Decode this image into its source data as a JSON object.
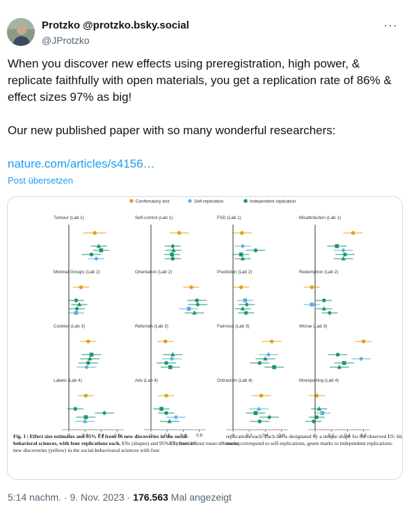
{
  "author": {
    "display_name": "Protzko @protzko.bsky.social",
    "handle": "@JProtzko"
  },
  "more_menu": "···",
  "tweet": {
    "line1": "When you discover new effects using preregistration, high power, & replicate faithfully with open materials, you get a replication rate of 86% & effect sizes 97% as big!",
    "line2": "Our new published paper with so many wonderful researchers:",
    "link_text": "nature.com/articles/s4156…",
    "translate": "Post übersetzen"
  },
  "figure": {
    "legend": [
      "Confirmatory test",
      "Self-replication",
      "Independent replication"
    ],
    "colors": {
      "confirmatory": "#e3a21a",
      "self": "#5aaee3",
      "independent": "#1a9670",
      "axis": "#333333",
      "text": "#333333"
    },
    "panels": [
      {
        "label": "Tumour (Lab 1)",
        "marks": [
          {
            "x": 0.32,
            "t": "c",
            "ci": 0.14
          },
          {
            "x": 0.37,
            "t": "i",
            "s": "tri",
            "ci": 0.1
          },
          {
            "x": 0.4,
            "t": "i",
            "s": "sq",
            "ci": 0.1
          },
          {
            "x": 0.28,
            "t": "i",
            "s": "dot",
            "ci": 0.12
          },
          {
            "x": 0.34,
            "t": "s",
            "s": "dia",
            "ci": 0.1
          }
        ]
      },
      {
        "label": "Self-control (Lab 1)",
        "marks": [
          {
            "x": 0.35,
            "t": "c",
            "ci": 0.12
          },
          {
            "x": 0.27,
            "t": "i",
            "s": "dia",
            "ci": 0.1
          },
          {
            "x": 0.28,
            "t": "i",
            "s": "tri",
            "ci": 0.1
          },
          {
            "x": 0.26,
            "t": "i",
            "s": "sq",
            "ci": 0.1
          },
          {
            "x": 0.27,
            "t": "i",
            "s": "dot",
            "ci": 0.1
          }
        ]
      },
      {
        "label": "FSD (Lab 1)",
        "marks": [
          {
            "x": 0.11,
            "t": "c",
            "ci": 0.12
          },
          {
            "x": 0.12,
            "t": "s",
            "s": "dia",
            "ci": 0.1
          },
          {
            "x": 0.28,
            "t": "i",
            "s": "dot",
            "ci": 0.12
          },
          {
            "x": 0.1,
            "t": "i",
            "s": "sq",
            "ci": 0.1
          },
          {
            "x": 0.12,
            "t": "i",
            "s": "tri",
            "ci": 0.1
          }
        ]
      },
      {
        "label": "Misattribution (Lab 1)",
        "marks": [
          {
            "x": 0.47,
            "t": "c",
            "ci": 0.12
          },
          {
            "x": 0.27,
            "t": "i",
            "s": "sq",
            "ci": 0.12
          },
          {
            "x": 0.35,
            "t": "s",
            "s": "dia",
            "ci": 0.12
          },
          {
            "x": 0.37,
            "t": "i",
            "s": "dot",
            "ci": 0.12
          },
          {
            "x": 0.35,
            "t": "i",
            "s": "tri",
            "ci": 0.12
          }
        ]
      },
      {
        "label": "Minimal Groups (Lab 2)",
        "marks": [
          {
            "x": 0.15,
            "t": "c",
            "ci": 0.1
          },
          {
            "x": 0.09,
            "t": "i",
            "s": "dot",
            "ci": 0.1
          },
          {
            "x": 0.13,
            "t": "i",
            "s": "tri",
            "ci": 0.1
          },
          {
            "x": 0.1,
            "t": "i",
            "s": "dia",
            "ci": 0.1
          },
          {
            "x": 0.09,
            "t": "s",
            "s": "sq",
            "ci": 0.1
          }
        ]
      },
      {
        "label": "Orientation (Lab 2)",
        "marks": [
          {
            "x": 0.5,
            "t": "c",
            "ci": 0.1
          },
          {
            "x": 0.57,
            "t": "i",
            "s": "dot",
            "ci": 0.12
          },
          {
            "x": 0.58,
            "t": "i",
            "s": "dia",
            "ci": 0.12
          },
          {
            "x": 0.47,
            "t": "s",
            "s": "sq",
            "ci": 0.12
          },
          {
            "x": 0.54,
            "t": "i",
            "s": "tri",
            "ci": 0.12
          }
        ]
      },
      {
        "label": "Prediction (Lab 2)",
        "marks": [
          {
            "x": 0.1,
            "t": "c",
            "ci": 0.1
          },
          {
            "x": 0.15,
            "t": "s",
            "s": "sq",
            "ci": 0.1
          },
          {
            "x": 0.17,
            "t": "i",
            "s": "dia",
            "ci": 0.1
          },
          {
            "x": 0.12,
            "t": "i",
            "s": "tri",
            "ci": 0.1
          },
          {
            "x": 0.16,
            "t": "i",
            "s": "dot",
            "ci": 0.1
          }
        ]
      },
      {
        "label": "Redemption (Lab 2)",
        "marks": [
          {
            "x": -0.04,
            "t": "c",
            "ci": 0.1
          },
          {
            "x": 0.11,
            "t": "i",
            "s": "dot",
            "ci": 0.1
          },
          {
            "x": -0.04,
            "t": "s",
            "s": "sq",
            "ci": 0.1
          },
          {
            "x": 0.11,
            "t": "i",
            "s": "tri",
            "ci": 0.1
          },
          {
            "x": 0.18,
            "t": "i",
            "s": "dia",
            "ci": 0.1
          }
        ]
      },
      {
        "label": "Cookies (Lab 3)",
        "marks": [
          {
            "x": 0.24,
            "t": "c",
            "ci": 0.1
          },
          {
            "x": 0.28,
            "t": "i",
            "s": "sq",
            "ci": 0.12
          },
          {
            "x": 0.26,
            "t": "i",
            "s": "tri",
            "ci": 0.12
          },
          {
            "x": 0.24,
            "t": "i",
            "s": "dot",
            "ci": 0.12
          },
          {
            "x": 0.22,
            "t": "s",
            "s": "dia",
            "ci": 0.12
          }
        ]
      },
      {
        "label": "Referrals (Lab 3)",
        "marks": [
          {
            "x": 0.18,
            "t": "c",
            "ci": 0.1
          },
          {
            "x": 0.27,
            "t": "i",
            "s": "tri",
            "ci": 0.12
          },
          {
            "x": 0.26,
            "t": "s",
            "s": "dia",
            "ci": 0.12
          },
          {
            "x": 0.19,
            "t": "i",
            "s": "dot",
            "ci": 0.12
          },
          {
            "x": 0.24,
            "t": "i",
            "s": "sq",
            "ci": 0.12
          }
        ]
      },
      {
        "label": "Fairness (Lab 3)",
        "marks": [
          {
            "x": 0.48,
            "t": "c",
            "ci": 0.12
          },
          {
            "x": 0.44,
            "t": "s",
            "s": "dia",
            "ci": 0.12
          },
          {
            "x": 0.4,
            "t": "i",
            "s": "tri",
            "ci": 0.12
          },
          {
            "x": 0.33,
            "t": "i",
            "s": "dot",
            "ci": 0.12
          },
          {
            "x": 0.51,
            "t": "i",
            "s": "sq",
            "ci": 0.12
          }
        ]
      },
      {
        "label": "Worse (Lab 3)",
        "marks": [
          {
            "x": 0.6,
            "t": "c",
            "ci": 0.1
          },
          {
            "x": 0.28,
            "t": "i",
            "s": "dot",
            "ci": 0.12
          },
          {
            "x": 0.57,
            "t": "s",
            "s": "dia",
            "ci": 0.12
          },
          {
            "x": 0.36,
            "t": "i",
            "s": "sq",
            "ci": 0.12
          },
          {
            "x": 0.3,
            "t": "i",
            "s": "tri",
            "ci": 0.12
          }
        ]
      },
      {
        "label": "Labels (Lab 4)",
        "marks": [
          {
            "x": 0.21,
            "t": "c",
            "ci": 0.1
          },
          {
            "x": 0.08,
            "t": "i",
            "s": "dot",
            "ci": 0.1
          },
          {
            "x": 0.44,
            "t": "i",
            "s": "dia",
            "ci": 0.12
          },
          {
            "x": 0.21,
            "t": "i",
            "s": "sq",
            "ci": 0.12
          },
          {
            "x": 0.2,
            "t": "s",
            "s": "tri",
            "ci": 0.12
          }
        ]
      },
      {
        "label": "Ads (Lab 4)",
        "marks": [
          {
            "x": 0.19,
            "t": "c",
            "ci": 0.1
          },
          {
            "x": 0.13,
            "t": "i",
            "s": "sq",
            "ci": 0.1
          },
          {
            "x": 0.19,
            "t": "i",
            "s": "dot",
            "ci": 0.1
          },
          {
            "x": 0.31,
            "t": "s",
            "s": "dia",
            "ci": 0.12
          },
          {
            "x": 0.23,
            "t": "i",
            "s": "tri",
            "ci": 0.12
          }
        ]
      },
      {
        "label": "Ostracism (Lab 4)",
        "marks": [
          {
            "x": 0.35,
            "t": "c",
            "ci": 0.12
          },
          {
            "x": 0.32,
            "t": "s",
            "s": "tri",
            "ci": 0.12
          },
          {
            "x": 0.28,
            "t": "i",
            "s": "sq",
            "ci": 0.12
          },
          {
            "x": 0.45,
            "t": "i",
            "s": "dia",
            "ci": 0.12
          },
          {
            "x": 0.33,
            "t": "i",
            "s": "dot",
            "ci": 0.12
          }
        ]
      },
      {
        "label": "Misreporting (Lab 4)",
        "marks": [
          {
            "x": 0.02,
            "t": "c",
            "ci": 0.1
          },
          {
            "x": 0.05,
            "t": "i",
            "s": "tri",
            "ci": 0.1
          },
          {
            "x": 0.09,
            "t": "s",
            "s": "sq",
            "ci": 0.1
          },
          {
            "x": 0.02,
            "t": "i",
            "s": "dot",
            "ci": 0.1
          },
          {
            "x": -0.02,
            "t": "i",
            "s": "dia",
            "ci": 0.1
          }
        ]
      }
    ],
    "x_ticks": [
      "0",
      "0.2",
      "0.4",
      "0.6"
    ],
    "x_label": "ES (standardized mean difference)",
    "caption_left_bold": "Fig. 1 | Effect size estimates and 95% CI from 16 new discoveries in the social-behavioral sciences, with four replications each.",
    "caption_left_rest": " ESs (shapes) and 95% CIs from 16 new discoveries (yellow) in the social-behavioural sciences with four",
    "caption_right": "replications each. Each lab is designated by a unique shape for the observed ES: blue marks correspond to self-replications, green marks to independent replications."
  },
  "meta": {
    "time": "5:14 nachm. · 9. Nov. 2023 · ",
    "views": "176.563",
    "views_suffix": " Mal angezeigt"
  }
}
